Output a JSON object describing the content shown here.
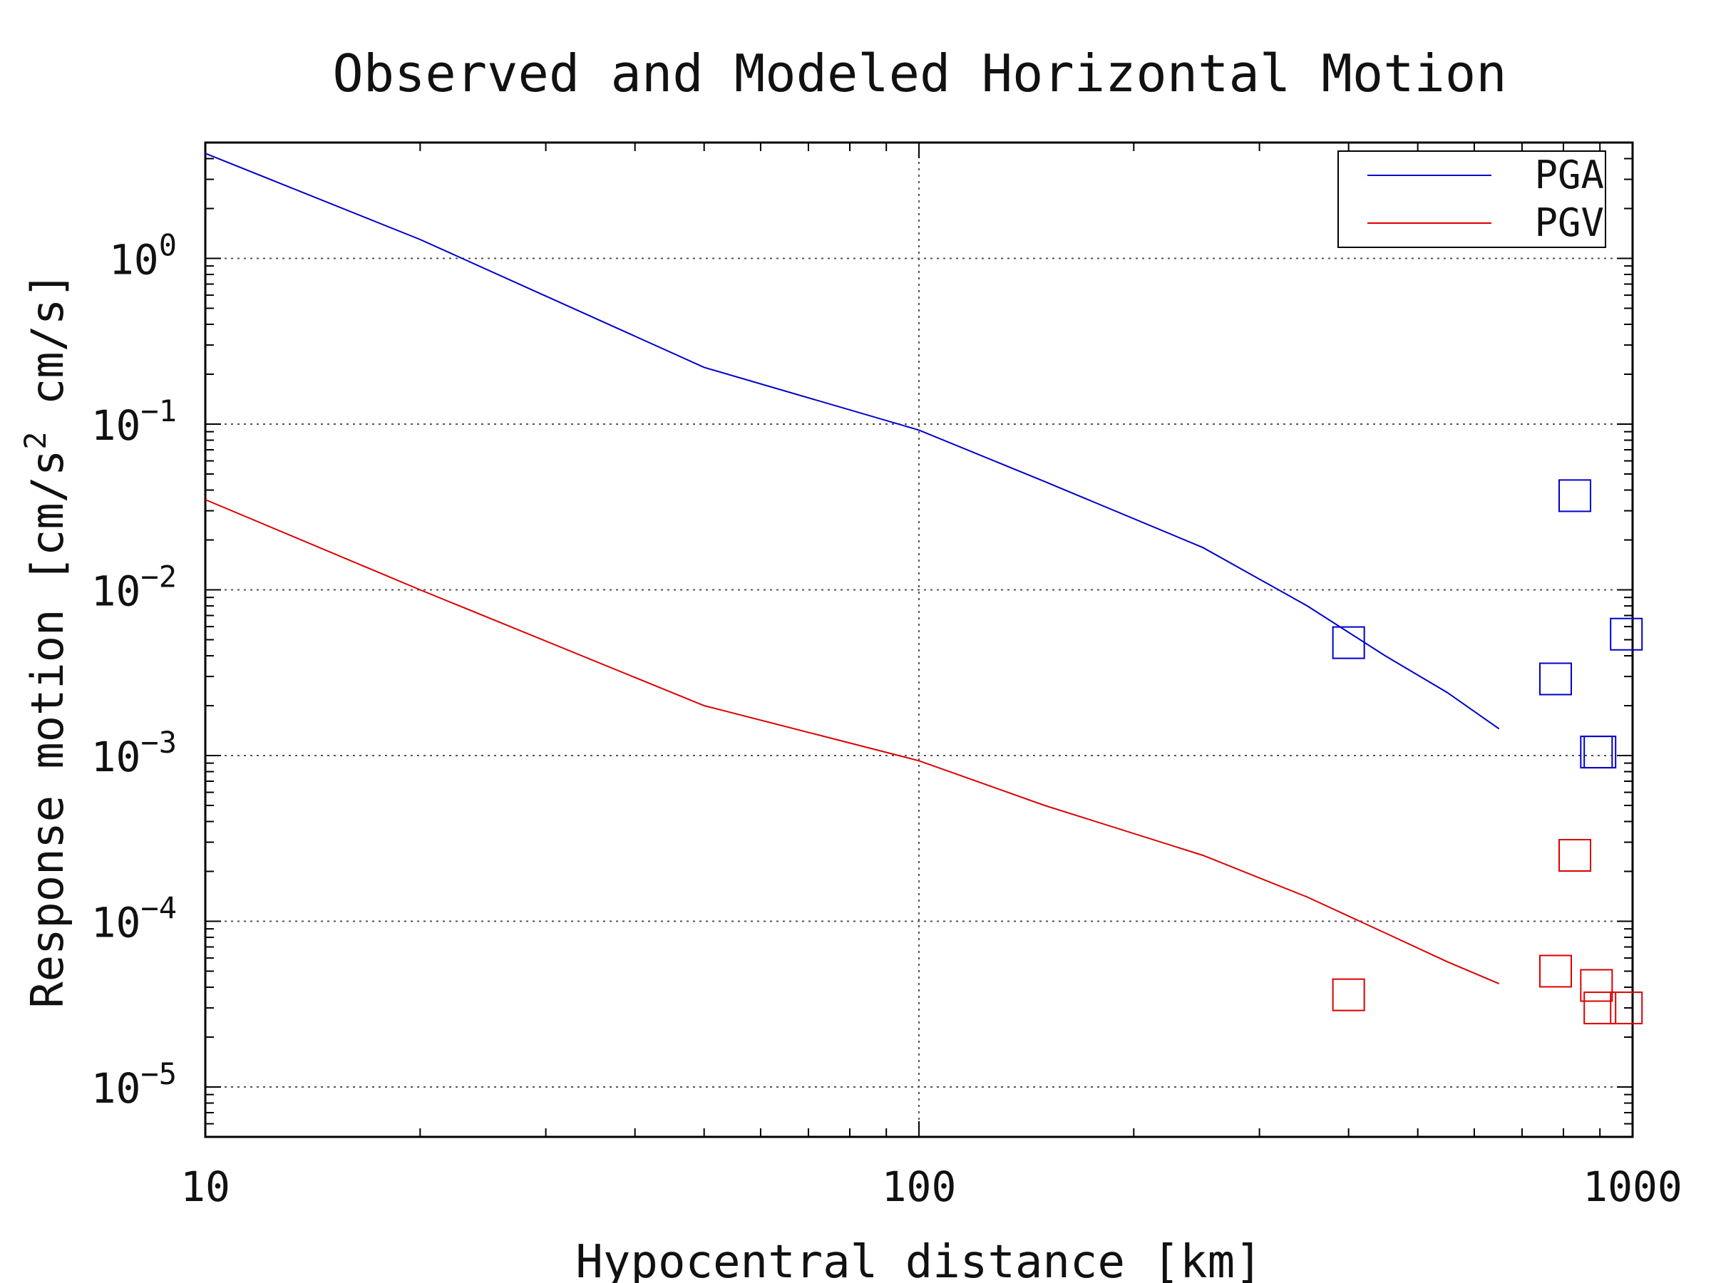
{
  "chart_data": {
    "type": "line",
    "title": "Observed and Modeled Horizontal Motion",
    "xlabel": "Hypocentral distance [km]",
    "ylabel_main": "Response motion  [cm/s",
    "ylabel_sup": "2",
    "ylabel_tail": "  cm/s]",
    "x_scale": "log",
    "y_scale": "log",
    "xlim": [
      10,
      1000
    ],
    "ylim": [
      5e-06,
      5
    ],
    "x_ticks": [
      {
        "value": 10,
        "label": "10"
      },
      {
        "value": 100,
        "label": "100"
      },
      {
        "value": 1000,
        "label": "1000"
      }
    ],
    "y_ticks": [
      {
        "value": 1,
        "base": "10",
        "exp": "0"
      },
      {
        "value": 0.1,
        "base": "10",
        "exp": "−1"
      },
      {
        "value": 0.01,
        "base": "10",
        "exp": "−2"
      },
      {
        "value": 0.001,
        "base": "10",
        "exp": "−3"
      },
      {
        "value": 0.0001,
        "base": "10",
        "exp": "−4"
      },
      {
        "value": 1e-05,
        "base": "10",
        "exp": "−5"
      }
    ],
    "grid": true,
    "legend_position": "top-right",
    "series": [
      {
        "name": "PGA",
        "color": "#0000cc",
        "x": [
          10,
          20,
          50,
          100,
          150,
          250,
          350,
          450,
          550,
          650
        ],
        "y": [
          4.3,
          1.3,
          0.22,
          0.092,
          0.045,
          0.018,
          0.008,
          0.004,
          0.0024,
          0.00145
        ]
      },
      {
        "name": "PGV",
        "color": "#dd0000",
        "x": [
          10,
          20,
          50,
          100,
          150,
          250,
          350,
          450,
          550,
          650
        ],
        "y": [
          0.035,
          0.01,
          0.002,
          0.00093,
          0.0005,
          0.00025,
          0.00014,
          8.5e-05,
          5.7e-05,
          4.2e-05
        ]
      }
    ],
    "observed": [
      {
        "series": "PGA",
        "color": "#0000cc",
        "x": [
          400,
          780,
          830,
          890,
          900,
          980
        ],
        "y": [
          0.0048,
          0.0029,
          0.037,
          0.00105,
          0.00105,
          0.0054
        ]
      },
      {
        "series": "PGV",
        "color": "#dd0000",
        "x": [
          400,
          780,
          830,
          890,
          900,
          980
        ],
        "y": [
          3.6e-05,
          5e-05,
          0.00025,
          4.1e-05,
          3e-05,
          3e-05
        ]
      }
    ]
  }
}
